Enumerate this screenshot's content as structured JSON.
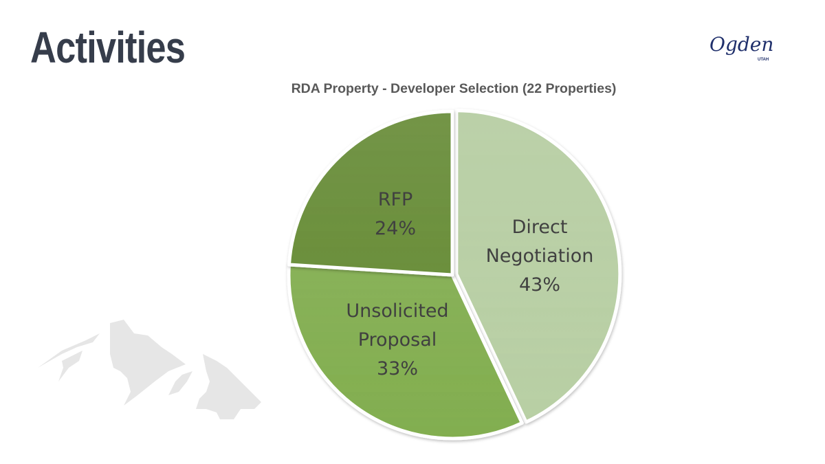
{
  "slide": {
    "title": "Activities",
    "logo": {
      "text": "Ogden",
      "subtext": "UTAH",
      "color": "#1f2f6b"
    }
  },
  "chart_data": {
    "type": "pie",
    "title": "RDA Property - Developer Selection (22 Properties)",
    "categories": [
      "Direct Negotiation",
      "Unsolicited Proposal",
      "RFP"
    ],
    "values": [
      43,
      33,
      24
    ],
    "unit": "%",
    "colors": [
      "#b8cfa4",
      "#82ae4f",
      "#6b8f3c"
    ],
    "data_labels": [
      {
        "lines": [
          "Direct",
          "Negotiation",
          "43%"
        ]
      },
      {
        "lines": [
          "Unsolicited",
          "Proposal",
          "33%"
        ]
      },
      {
        "lines": [
          "RFP",
          "24%"
        ]
      }
    ],
    "start_angle": "12 o'clock",
    "direction": "clockwise",
    "exploded_slice": "Direct Negotiation",
    "legend": "none"
  }
}
